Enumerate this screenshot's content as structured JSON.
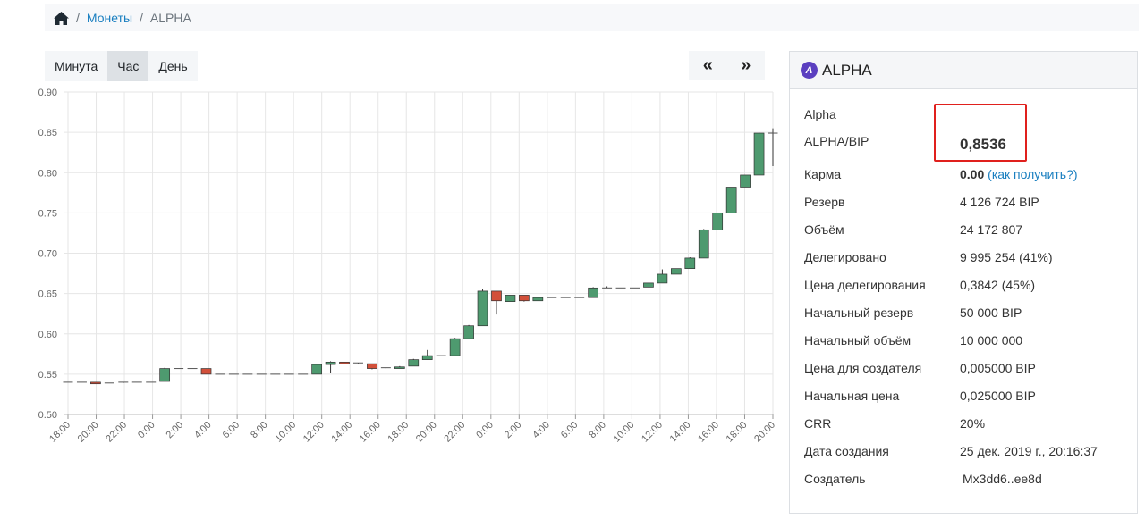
{
  "breadcrumb": {
    "home_icon": "home-icon",
    "coins": "Монеты",
    "current": "ALPHA"
  },
  "period_buttons": [
    "Минута",
    "Час",
    "День"
  ],
  "period_active": "Час",
  "nav": {
    "prev": "«",
    "next": "»"
  },
  "panel": {
    "title": "ALPHA",
    "logo_letter": "A",
    "name": "Alpha",
    "pair_label": "ALPHA/BIP",
    "price": "0,8536",
    "karma_label": "Карма",
    "karma_value": "0.00",
    "karma_link_open": "(",
    "karma_link": "как получить?",
    "karma_link_close": ")",
    "fields": [
      {
        "label": "Резерв",
        "value": "4 126 724 BIP"
      },
      {
        "label": "Объём",
        "value": "24 172 807"
      },
      {
        "label": "Делегировано",
        "value": "9 995 254 (41%)"
      },
      {
        "label": "Цена делегирования",
        "value": "0,3842 (45%)"
      },
      {
        "label": "Начальный резерв",
        "value": "50 000 BIP"
      },
      {
        "label": "Начальный объём",
        "value": "10 000 000"
      },
      {
        "label": "Цена для создателя",
        "value": "0,005000 BIP"
      },
      {
        "label": "Начальная цена",
        "value": "0,025000 BIP"
      },
      {
        "label": "CRR",
        "value": "20%"
      },
      {
        "label": "Дата создания",
        "value": "25 дек. 2019 г., 20:16:37"
      }
    ],
    "creator_label": "Создатель",
    "creator_value": "Mx3dd6..ee8d"
  },
  "colors": {
    "up": "#4e9a6f",
    "down": "#d2503a",
    "accent": "#1a7fc0",
    "highlight": "#e0201d"
  },
  "chart_data": {
    "type": "candlestick",
    "ylim": [
      0.5,
      0.9
    ],
    "y_ticks": [
      "0.50",
      "0.55",
      "0.60",
      "0.65",
      "0.70",
      "0.75",
      "0.80",
      "0.85",
      "0.90"
    ],
    "x_ticks": [
      "18:00",
      "20:00",
      "22:00",
      "0:00",
      "2:00",
      "4:00",
      "6:00",
      "8:00",
      "10:00",
      "12:00",
      "14:00",
      "16:00",
      "18:00",
      "20:00",
      "22:00",
      "0:00",
      "2:00",
      "4:00",
      "6:00",
      "8:00",
      "10:00",
      "12:00",
      "14:00",
      "16:00",
      "18:00",
      "20:00"
    ],
    "candles": [
      {
        "o": 0.54,
        "h": 0.54,
        "l": 0.54,
        "c": 0.54
      },
      {
        "o": 0.54,
        "h": 0.54,
        "l": 0.54,
        "c": 0.54
      },
      {
        "o": 0.54,
        "h": 0.54,
        "l": 0.538,
        "c": 0.538
      },
      {
        "o": 0.539,
        "h": 0.539,
        "l": 0.539,
        "c": 0.539
      },
      {
        "o": 0.539,
        "h": 0.54,
        "l": 0.539,
        "c": 0.54
      },
      {
        "o": 0.54,
        "h": 0.54,
        "l": 0.54,
        "c": 0.54
      },
      {
        "o": 0.54,
        "h": 0.54,
        "l": 0.54,
        "c": 0.54
      },
      {
        "o": 0.541,
        "h": 0.558,
        "l": 0.541,
        "c": 0.557
      },
      {
        "o": 0.557,
        "h": 0.557,
        "l": 0.557,
        "c": 0.557
      },
      {
        "o": 0.557,
        "h": 0.557,
        "l": 0.557,
        "c": 0.557
      },
      {
        "o": 0.557,
        "h": 0.557,
        "l": 0.55,
        "c": 0.55
      },
      {
        "o": 0.55,
        "h": 0.55,
        "l": 0.55,
        "c": 0.55
      },
      {
        "o": 0.55,
        "h": 0.55,
        "l": 0.55,
        "c": 0.55
      },
      {
        "o": 0.55,
        "h": 0.55,
        "l": 0.55,
        "c": 0.55
      },
      {
        "o": 0.55,
        "h": 0.55,
        "l": 0.55,
        "c": 0.55
      },
      {
        "o": 0.55,
        "h": 0.55,
        "l": 0.55,
        "c": 0.55
      },
      {
        "o": 0.55,
        "h": 0.55,
        "l": 0.55,
        "c": 0.55
      },
      {
        "o": 0.55,
        "h": 0.55,
        "l": 0.55,
        "c": 0.55
      },
      {
        "o": 0.55,
        "h": 0.562,
        "l": 0.55,
        "c": 0.562
      },
      {
        "o": 0.562,
        "h": 0.566,
        "l": 0.552,
        "c": 0.565
      },
      {
        "o": 0.565,
        "h": 0.565,
        "l": 0.563,
        "c": 0.563
      },
      {
        "o": 0.564,
        "h": 0.564,
        "l": 0.563,
        "c": 0.563
      },
      {
        "o": 0.563,
        "h": 0.563,
        "l": 0.556,
        "c": 0.557
      },
      {
        "o": 0.557,
        "h": 0.558,
        "l": 0.557,
        "c": 0.558
      },
      {
        "o": 0.557,
        "h": 0.56,
        "l": 0.557,
        "c": 0.559
      },
      {
        "o": 0.56,
        "h": 0.569,
        "l": 0.56,
        "c": 0.568
      },
      {
        "o": 0.568,
        "h": 0.58,
        "l": 0.568,
        "c": 0.573
      },
      {
        "o": 0.573,
        "h": 0.573,
        "l": 0.573,
        "c": 0.573
      },
      {
        "o": 0.573,
        "h": 0.595,
        "l": 0.573,
        "c": 0.594
      },
      {
        "o": 0.594,
        "h": 0.611,
        "l": 0.594,
        "c": 0.61
      },
      {
        "o": 0.61,
        "h": 0.656,
        "l": 0.61,
        "c": 0.653
      },
      {
        "o": 0.653,
        "h": 0.653,
        "l": 0.624,
        "c": 0.641
      },
      {
        "o": 0.64,
        "h": 0.648,
        "l": 0.64,
        "c": 0.648
      },
      {
        "o": 0.648,
        "h": 0.648,
        "l": 0.64,
        "c": 0.641
      },
      {
        "o": 0.641,
        "h": 0.645,
        "l": 0.641,
        "c": 0.645
      },
      {
        "o": 0.645,
        "h": 0.645,
        "l": 0.645,
        "c": 0.645
      },
      {
        "o": 0.645,
        "h": 0.645,
        "l": 0.645,
        "c": 0.645
      },
      {
        "o": 0.645,
        "h": 0.645,
        "l": 0.645,
        "c": 0.645
      },
      {
        "o": 0.645,
        "h": 0.658,
        "l": 0.645,
        "c": 0.657
      },
      {
        "o": 0.657,
        "h": 0.659,
        "l": 0.657,
        "c": 0.657
      },
      {
        "o": 0.657,
        "h": 0.657,
        "l": 0.657,
        "c": 0.657
      },
      {
        "o": 0.657,
        "h": 0.657,
        "l": 0.657,
        "c": 0.657
      },
      {
        "o": 0.658,
        "h": 0.663,
        "l": 0.658,
        "c": 0.663
      },
      {
        "o": 0.663,
        "h": 0.68,
        "l": 0.663,
        "c": 0.674
      },
      {
        "o": 0.674,
        "h": 0.681,
        "l": 0.674,
        "c": 0.681
      },
      {
        "o": 0.681,
        "h": 0.695,
        "l": 0.681,
        "c": 0.694
      },
      {
        "o": 0.694,
        "h": 0.73,
        "l": 0.694,
        "c": 0.729
      },
      {
        "o": 0.729,
        "h": 0.75,
        "l": 0.729,
        "c": 0.75
      },
      {
        "o": 0.75,
        "h": 0.782,
        "l": 0.75,
        "c": 0.782
      },
      {
        "o": 0.782,
        "h": 0.797,
        "l": 0.782,
        "c": 0.797
      },
      {
        "o": 0.797,
        "h": 0.85,
        "l": 0.797,
        "c": 0.849
      },
      {
        "o": 0.849,
        "h": 0.855,
        "l": 0.808,
        "c": 0.849
      }
    ]
  }
}
